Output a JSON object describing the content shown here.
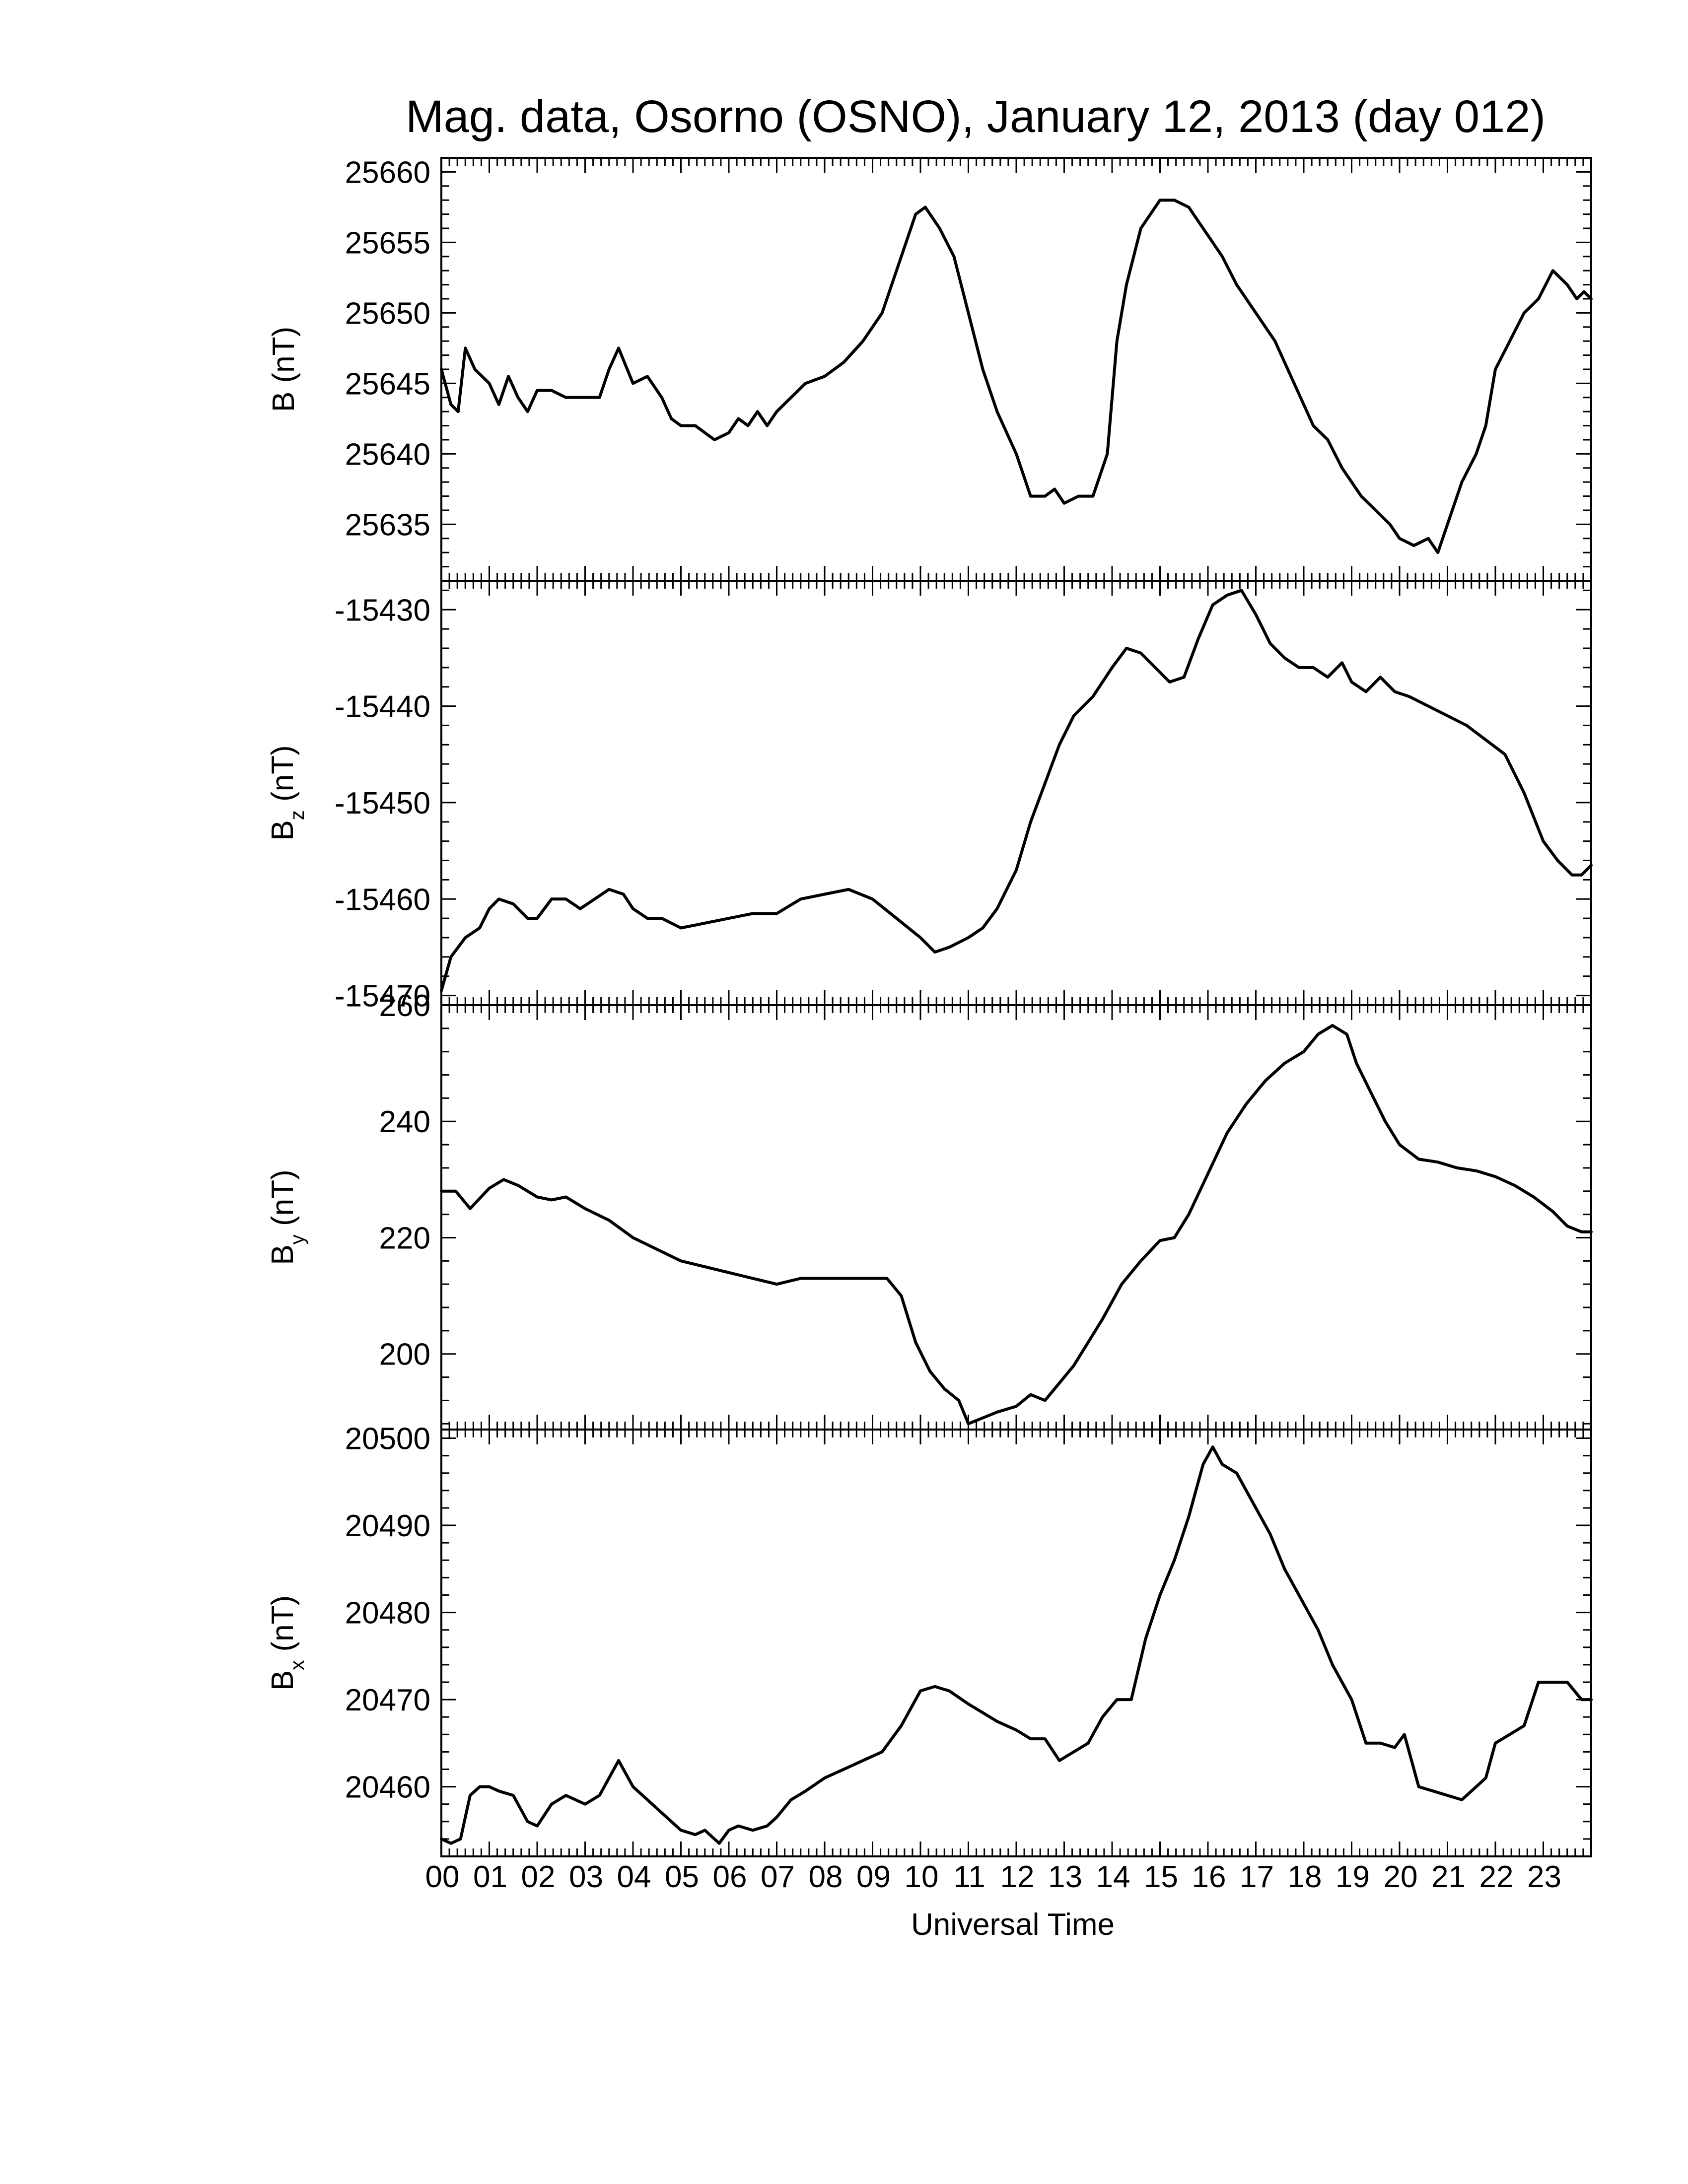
{
  "chart_data": {
    "type": "line",
    "title": "Mag. data, Osorno (OSNO), January 12, 2013 (day 012)",
    "xlabel": "Universal Time",
    "x_tick_labels": [
      "00",
      "01",
      "02",
      "03",
      "04",
      "05",
      "06",
      "07",
      "08",
      "09",
      "10",
      "11",
      "12",
      "13",
      "14",
      "15",
      "16",
      "17",
      "18",
      "19",
      "20",
      "21",
      "22",
      "23"
    ],
    "xlim": [
      0,
      24
    ],
    "panels": [
      {
        "ylabel": "B",
        "ylabel_sub": "",
        "ylabel_unit": "(nT)",
        "ylim": [
          25631,
          25661
        ],
        "y_ticks": [
          25635,
          25640,
          25645,
          25650,
          25655,
          25660
        ],
        "y_tick_labels": [
          "25635",
          "25640",
          "25645",
          "25650",
          "25655",
          "25660"
        ],
        "x": [
          0,
          0.2,
          0.35,
          0.5,
          0.7,
          1,
          1.2,
          1.4,
          1.6,
          1.8,
          2,
          2.3,
          2.6,
          3,
          3.3,
          3.5,
          3.7,
          4,
          4.3,
          4.6,
          4.8,
          5,
          5.3,
          5.5,
          5.7,
          6,
          6.2,
          6.4,
          6.6,
          6.8,
          7,
          7.3,
          7.6,
          8,
          8.4,
          8.8,
          9.2,
          9.6,
          9.9,
          10.1,
          10.4,
          10.7,
          11,
          11.3,
          11.6,
          12,
          12.3,
          12.6,
          12.8,
          13,
          13.3,
          13.6,
          13.9,
          14.1,
          14.3,
          14.6,
          15,
          15.3,
          15.6,
          15.9,
          16.1,
          16.3,
          16.6,
          17,
          17.4,
          17.8,
          18.2,
          18.5,
          18.8,
          19,
          19.2,
          19.5,
          19.8,
          20,
          20.3,
          20.6,
          20.8,
          21,
          21.3,
          21.6,
          21.8,
          22,
          22.3,
          22.6,
          22.9,
          23.2,
          23.5,
          23.7,
          23.85,
          24
        ],
        "values": [
          25646,
          25643.5,
          25643,
          25647.5,
          25646,
          25645,
          25643.5,
          25645.5,
          25644,
          25643,
          25644.5,
          25644.5,
          25644,
          25644,
          25644,
          25646,
          25647.5,
          25645,
          25645.5,
          25644,
          25642.5,
          25642,
          25642,
          25641.5,
          25641,
          25641.5,
          25642.5,
          25642,
          25643,
          25642,
          25643,
          25644,
          25645,
          25645.5,
          25646.5,
          25648,
          25650,
          25654,
          25657,
          25657.5,
          25656,
          25654,
          25650,
          25646,
          25643,
          25640,
          25637,
          25637,
          25637.5,
          25636.5,
          25637,
          25637,
          25640,
          25648,
          25652,
          25656,
          25658,
          25658,
          25657.5,
          25656,
          25655,
          25654,
          25652,
          25650,
          25648,
          25645,
          25642,
          25641,
          25639,
          25638,
          25637,
          25636,
          25635,
          25634,
          25633.5,
          25634,
          25633,
          25635,
          25638,
          25640,
          25642,
          25646,
          25648,
          25650,
          25651,
          25653,
          25652,
          25651,
          25651.5,
          25651
        ],
        "series": "B"
      },
      {
        "ylabel": "B",
        "ylabel_sub": "z",
        "ylabel_unit": "(nT)",
        "ylim": [
          -15471,
          -15427
        ],
        "y_ticks": [
          -15470,
          -15460,
          -15450,
          -15440,
          -15430
        ],
        "y_tick_labels": [
          "-15470",
          "-15460",
          "-15450",
          "-15440",
          "-15430"
        ],
        "x": [
          0,
          0.2,
          0.5,
          0.8,
          1,
          1.2,
          1.5,
          1.8,
          2,
          2.3,
          2.6,
          2.9,
          3.2,
          3.5,
          3.8,
          4,
          4.3,
          4.6,
          5,
          5.5,
          6,
          6.5,
          7,
          7.5,
          8,
          8.5,
          9,
          9.5,
          10,
          10.3,
          10.6,
          11,
          11.3,
          11.6,
          12,
          12.3,
          12.6,
          12.9,
          13.2,
          13.6,
          14,
          14.3,
          14.6,
          14.9,
          15.2,
          15.5,
          15.8,
          16.1,
          16.4,
          16.7,
          17,
          17.3,
          17.6,
          17.9,
          18.2,
          18.5,
          18.8,
          19,
          19.3,
          19.6,
          19.9,
          20.2,
          20.6,
          21,
          21.4,
          21.8,
          22.2,
          22.6,
          23,
          23.3,
          23.6,
          23.8,
          24
        ],
        "values": [
          -15469.5,
          -15466,
          -15464,
          -15463,
          -15461,
          -15460,
          -15460.5,
          -15462,
          -15462,
          -15460,
          -15460,
          -15461,
          -15460,
          -15459,
          -15459.5,
          -15461,
          -15462,
          -15462,
          -15463,
          -15462.5,
          -15462,
          -15461.5,
          -15461.5,
          -15460,
          -15459.5,
          -15459,
          -15460,
          -15462,
          -15464,
          -15465.5,
          -15465,
          -15464,
          -15463,
          -15461,
          -15457,
          -15452,
          -15448,
          -15444,
          -15441,
          -15439,
          -15436,
          -15434,
          -15434.5,
          -15436,
          -15437.5,
          -15437,
          -15433,
          -15429.5,
          -15428.5,
          -15428,
          -15430.5,
          -15433.5,
          -15435,
          -15436,
          -15436,
          -15437,
          -15435.5,
          -15437.5,
          -15438.5,
          -15437,
          -15438.5,
          -15439,
          -15440,
          -15441,
          -15442,
          -15443.5,
          -15445,
          -15449,
          -15454,
          -15456,
          -15457.5,
          -15457.5,
          -15456.5
        ],
        "series": "Bz"
      },
      {
        "ylabel": "B",
        "ylabel_sub": "y",
        "ylabel_unit": "(nT)",
        "ylim": [
          187,
          260
        ],
        "y_ticks": [
          200,
          220,
          240,
          260
        ],
        "y_tick_labels": [
          "200",
          "220",
          "240",
          "260"
        ],
        "x": [
          0,
          0.3,
          0.6,
          1,
          1.3,
          1.6,
          2,
          2.3,
          2.6,
          3,
          3.5,
          4,
          4.5,
          5,
          5.5,
          6,
          6.5,
          7,
          7.5,
          8,
          8.5,
          9,
          9.3,
          9.6,
          9.9,
          10.2,
          10.5,
          10.8,
          11,
          11.3,
          11.6,
          12,
          12.3,
          12.6,
          12.9,
          13.2,
          13.5,
          13.8,
          14.2,
          14.6,
          15,
          15.3,
          15.6,
          16,
          16.4,
          16.8,
          17.2,
          17.6,
          18,
          18.3,
          18.6,
          18.9,
          19.1,
          19.4,
          19.7,
          20,
          20.4,
          20.8,
          21.2,
          21.6,
          22,
          22.4,
          22.8,
          23.2,
          23.5,
          23.8,
          24
        ],
        "values": [
          228,
          228,
          225,
          228.5,
          230,
          229,
          227,
          226.5,
          227,
          225,
          223,
          220,
          218,
          216,
          215,
          214,
          213,
          212,
          213,
          213,
          213,
          213,
          213,
          210,
          202,
          197,
          194,
          192,
          188,
          189,
          190,
          191,
          193,
          192,
          195,
          198,
          202,
          206,
          212,
          216,
          219.5,
          220,
          224,
          231,
          238,
          243,
          247,
          250,
          252,
          255,
          256.5,
          255,
          250,
          245,
          240,
          236,
          233.5,
          233,
          232,
          231.5,
          230.5,
          229,
          227,
          224.5,
          222,
          221,
          221
        ],
        "series": "By"
      },
      {
        "ylabel": "B",
        "ylabel_sub": "x",
        "ylabel_unit": "(nT)",
        "ylim": [
          20452,
          20501
        ],
        "y_ticks": [
          20460,
          20470,
          20480,
          20490,
          20500
        ],
        "y_tick_labels": [
          "20460",
          "20470",
          "20480",
          "20490",
          "20500"
        ],
        "x": [
          0,
          0.2,
          0.4,
          0.6,
          0.8,
          1,
          1.2,
          1.5,
          1.8,
          2,
          2.3,
          2.6,
          3,
          3.3,
          3.5,
          3.7,
          4,
          4.3,
          4.6,
          5,
          5.3,
          5.5,
          5.8,
          6,
          6.2,
          6.5,
          6.8,
          7,
          7.3,
          7.6,
          8,
          8.4,
          8.8,
          9.2,
          9.6,
          10,
          10.3,
          10.6,
          11,
          11.3,
          11.6,
          12,
          12.3,
          12.6,
          12.9,
          13.2,
          13.5,
          13.8,
          14.1,
          14.4,
          14.7,
          15,
          15.3,
          15.6,
          15.9,
          16.1,
          16.3,
          16.6,
          17,
          17.3,
          17.6,
          18,
          18.3,
          18.6,
          18.8,
          19,
          19.3,
          19.6,
          19.9,
          20.1,
          20.4,
          20.7,
          21,
          21.3,
          21.6,
          21.8,
          22,
          22.3,
          22.6,
          22.9,
          23.2,
          23.5,
          23.8,
          24
        ],
        "values": [
          20454,
          20453.5,
          20454,
          20459,
          20460,
          20460,
          20459.5,
          20459,
          20456,
          20455.5,
          20458,
          20459,
          20458,
          20459,
          20461,
          20463,
          20460,
          20458.5,
          20457,
          20455,
          20454.5,
          20455,
          20453.5,
          20455,
          20455.5,
          20455,
          20455.5,
          20456.5,
          20458.5,
          20459.5,
          20461,
          20462,
          20463,
          20464,
          20467,
          20471,
          20471.5,
          20471,
          20469.5,
          20468.5,
          20467.5,
          20466.5,
          20465.5,
          20465.5,
          20463,
          20464,
          20465,
          20468,
          20470,
          20470,
          20477,
          20482,
          20486,
          20491,
          20497,
          20499,
          20497,
          20496,
          20492,
          20489,
          20485,
          20481,
          20478,
          20474,
          20472,
          20470,
          20465,
          20465,
          20464.5,
          20466,
          20460,
          20459.5,
          20459,
          20458.5,
          20460,
          20461,
          20465,
          20466,
          20467,
          20472,
          20472,
          20472,
          20470,
          20470
        ],
        "series": "Bx"
      }
    ]
  }
}
